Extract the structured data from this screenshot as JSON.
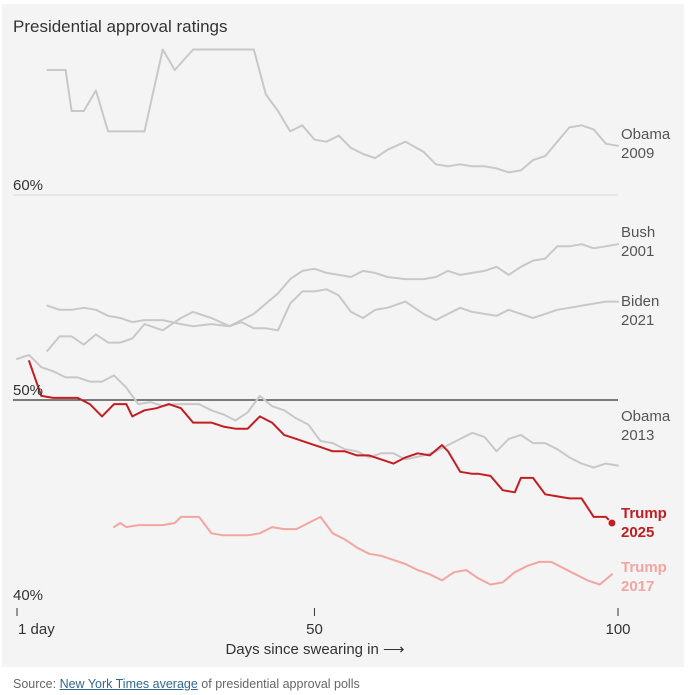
{
  "title": "Presidential approval ratings",
  "source": {
    "prefix": "Source: ",
    "link_text": "New York Times average",
    "suffix": " of presidential approval polls"
  },
  "chart_data": {
    "type": "line",
    "title": "Presidential approval ratings",
    "xlabel": "Days since swearing in",
    "xlabel_arrow": "⟶",
    "ylabel": "",
    "xlim": [
      1,
      100
    ],
    "ylim": [
      40,
      70
    ],
    "x_ticks": [
      {
        "value": 1,
        "label": "1 day"
      },
      {
        "value": 50,
        "label": "50"
      },
      {
        "value": 100,
        "label": "100"
      }
    ],
    "y_ticks": [
      {
        "value": 60,
        "label": "60%"
      },
      {
        "value": 50,
        "label": "50%"
      },
      {
        "value": 40,
        "label": "40%"
      }
    ],
    "colors": {
      "past": "#c8c8c8",
      "trump2025": "#c31d22",
      "trump2017": "#f3a5a2",
      "baseline": "#333333",
      "gridline": "#dddddd"
    },
    "series": [
      {
        "name": "Obama 2009",
        "label_line1": "Obama",
        "label_line2": "2009",
        "style": "past",
        "x": [
          6,
          9,
          10,
          12,
          14,
          16,
          18,
          20,
          22,
          25,
          27,
          30,
          32,
          34,
          36,
          38,
          40,
          42,
          44,
          46,
          48,
          50,
          52,
          54,
          56,
          58,
          60,
          62,
          65,
          68,
          70,
          72,
          74,
          76,
          78,
          80,
          82,
          84,
          86,
          88,
          90,
          92,
          94,
          96,
          98,
          100
        ],
        "y": [
          66.1,
          66.1,
          64.1,
          64.1,
          65.1,
          63.1,
          63.1,
          63.1,
          63.1,
          67.1,
          66.1,
          67.1,
          67.1,
          67.1,
          67.1,
          67.1,
          67.1,
          64.9,
          64.1,
          63.1,
          63.4,
          62.7,
          62.6,
          62.9,
          62.3,
          62.0,
          61.8,
          62.2,
          62.6,
          62.1,
          61.5,
          61.4,
          61.5,
          61.4,
          61.4,
          61.3,
          61.1,
          61.2,
          61.7,
          61.9,
          62.6,
          63.3,
          63.4,
          63.2,
          62.5,
          62.4
        ]
      },
      {
        "name": "Bush 2001",
        "label_line1": "Bush",
        "label_line2": "2001",
        "style": "past",
        "x": [
          6,
          8,
          10,
          12,
          14,
          16,
          18,
          20,
          22,
          25,
          28,
          30,
          33,
          36,
          38,
          40,
          42,
          44,
          46,
          48,
          50,
          52,
          54,
          56,
          58,
          60,
          62,
          65,
          68,
          70,
          72,
          74,
          76,
          78,
          80,
          82,
          84,
          86,
          88,
          90,
          92,
          94,
          96,
          98,
          100
        ],
        "y": [
          52.4,
          53.1,
          53.1,
          52.7,
          53.2,
          52.8,
          52.8,
          53.0,
          53.7,
          53.4,
          54.0,
          54.3,
          54.0,
          53.6,
          53.9,
          54.2,
          54.7,
          55.2,
          55.9,
          56.3,
          56.4,
          56.2,
          56.1,
          56.0,
          56.3,
          56.2,
          56.0,
          55.9,
          55.9,
          56.0,
          56.3,
          56.1,
          56.2,
          56.3,
          56.5,
          56.1,
          56.5,
          56.8,
          56.9,
          57.5,
          57.5,
          57.6,
          57.4,
          57.5,
          57.6
        ]
      },
      {
        "name": "Biden 2021",
        "label_line1": "Biden",
        "label_line2": "2021",
        "style": "past",
        "x": [
          6,
          8,
          10,
          12,
          14,
          16,
          18,
          20,
          22,
          25,
          28,
          30,
          33,
          36,
          38,
          40,
          42,
          44,
          46,
          48,
          50,
          52,
          54,
          56,
          58,
          60,
          62,
          65,
          68,
          70,
          72,
          74,
          76,
          78,
          80,
          82,
          84,
          86,
          88,
          90,
          92,
          94,
          96,
          98,
          100
        ],
        "y": [
          54.6,
          54.4,
          54.4,
          54.5,
          54.4,
          54.1,
          54.0,
          53.8,
          53.9,
          53.9,
          53.7,
          53.6,
          53.7,
          53.6,
          53.8,
          53.5,
          53.5,
          53.4,
          54.7,
          55.3,
          55.3,
          55.4,
          55.1,
          54.3,
          54.0,
          54.4,
          54.5,
          54.8,
          54.2,
          53.9,
          54.2,
          54.5,
          54.3,
          54.2,
          54.1,
          54.4,
          54.2,
          54.0,
          54.2,
          54.4,
          54.5,
          54.6,
          54.7,
          54.8,
          54.8
        ]
      },
      {
        "name": "Obama 2013",
        "label_line1": "Obama",
        "label_line2": "2013",
        "style": "past",
        "x": [
          1,
          3,
          5,
          7,
          9,
          11,
          13,
          15,
          17,
          19,
          21,
          23,
          25,
          27,
          29,
          31,
          33,
          35,
          37,
          39,
          41,
          43,
          45,
          47,
          49,
          51,
          53,
          55,
          57,
          59,
          61,
          63,
          65,
          68,
          70,
          72,
          74,
          76,
          78,
          80,
          82,
          84,
          86,
          88,
          90,
          92,
          94,
          96,
          98,
          100
        ],
        "y": [
          52.0,
          52.2,
          51.6,
          51.4,
          51.1,
          51.1,
          50.9,
          50.9,
          51.2,
          50.6,
          49.8,
          49.9,
          49.7,
          49.8,
          49.8,
          49.8,
          49.5,
          49.3,
          49.0,
          49.4,
          50.2,
          49.7,
          49.5,
          49.1,
          48.8,
          48.0,
          47.9,
          47.6,
          47.5,
          47.2,
          47.4,
          47.4,
          47.1,
          47.3,
          47.5,
          47.8,
          48.1,
          48.4,
          48.2,
          47.5,
          48.1,
          48.3,
          47.9,
          47.9,
          47.6,
          47.2,
          46.9,
          46.7,
          46.9,
          46.8
        ]
      },
      {
        "name": "Trump 2025",
        "label_line1": "Trump",
        "label_line2": "2025",
        "style": "trump2025",
        "endpoint": true,
        "x": [
          3,
          5,
          7,
          9,
          11,
          13,
          15,
          17,
          19,
          20,
          22,
          24,
          26,
          28,
          30,
          31,
          33,
          35,
          37,
          39,
          41,
          43,
          45,
          47,
          49,
          51,
          53,
          55,
          57,
          59,
          61,
          63,
          65,
          67,
          69,
          71,
          72,
          74,
          76,
          77,
          79,
          81,
          83,
          84,
          85,
          86,
          88,
          90,
          92,
          94,
          96,
          98,
          99
        ],
        "y": [
          51.9,
          50.2,
          50.1,
          50.1,
          50.1,
          49.8,
          49.2,
          49.8,
          49.8,
          49.2,
          49.5,
          49.6,
          49.8,
          49.6,
          48.9,
          48.9,
          48.9,
          48.7,
          48.6,
          48.6,
          49.2,
          48.9,
          48.3,
          48.1,
          47.9,
          47.7,
          47.5,
          47.5,
          47.3,
          47.3,
          47.1,
          46.9,
          47.2,
          47.4,
          47.3,
          47.8,
          47.5,
          46.5,
          46.4,
          46.4,
          46.3,
          45.6,
          45.5,
          46.2,
          46.2,
          46.2,
          45.4,
          45.3,
          45.2,
          45.2,
          44.3,
          44.3,
          44.0
        ]
      },
      {
        "name": "Trump 2017",
        "label_line1": "Trump",
        "label_line2": "2017",
        "style": "trump2017",
        "x": [
          17,
          18,
          19,
          21,
          23,
          25,
          27,
          28,
          29,
          31,
          33,
          35,
          37,
          39,
          41,
          43,
          45,
          47,
          49,
          51,
          53,
          55,
          57,
          59,
          61,
          63,
          65,
          67,
          69,
          71,
          73,
          75,
          77,
          79,
          81,
          83,
          85,
          87,
          89,
          91,
          93,
          95,
          97,
          99
        ],
        "y": [
          43.8,
          44.0,
          43.8,
          43.9,
          43.9,
          43.9,
          44.0,
          44.3,
          44.3,
          44.3,
          43.5,
          43.4,
          43.4,
          43.4,
          43.5,
          43.8,
          43.7,
          43.7,
          44.0,
          44.3,
          43.5,
          43.2,
          42.8,
          42.5,
          42.4,
          42.2,
          42.0,
          41.7,
          41.5,
          41.2,
          41.6,
          41.7,
          41.3,
          41.0,
          41.1,
          41.6,
          41.9,
          42.1,
          42.1,
          41.8,
          41.5,
          41.2,
          41.0,
          41.5
        ]
      }
    ]
  }
}
